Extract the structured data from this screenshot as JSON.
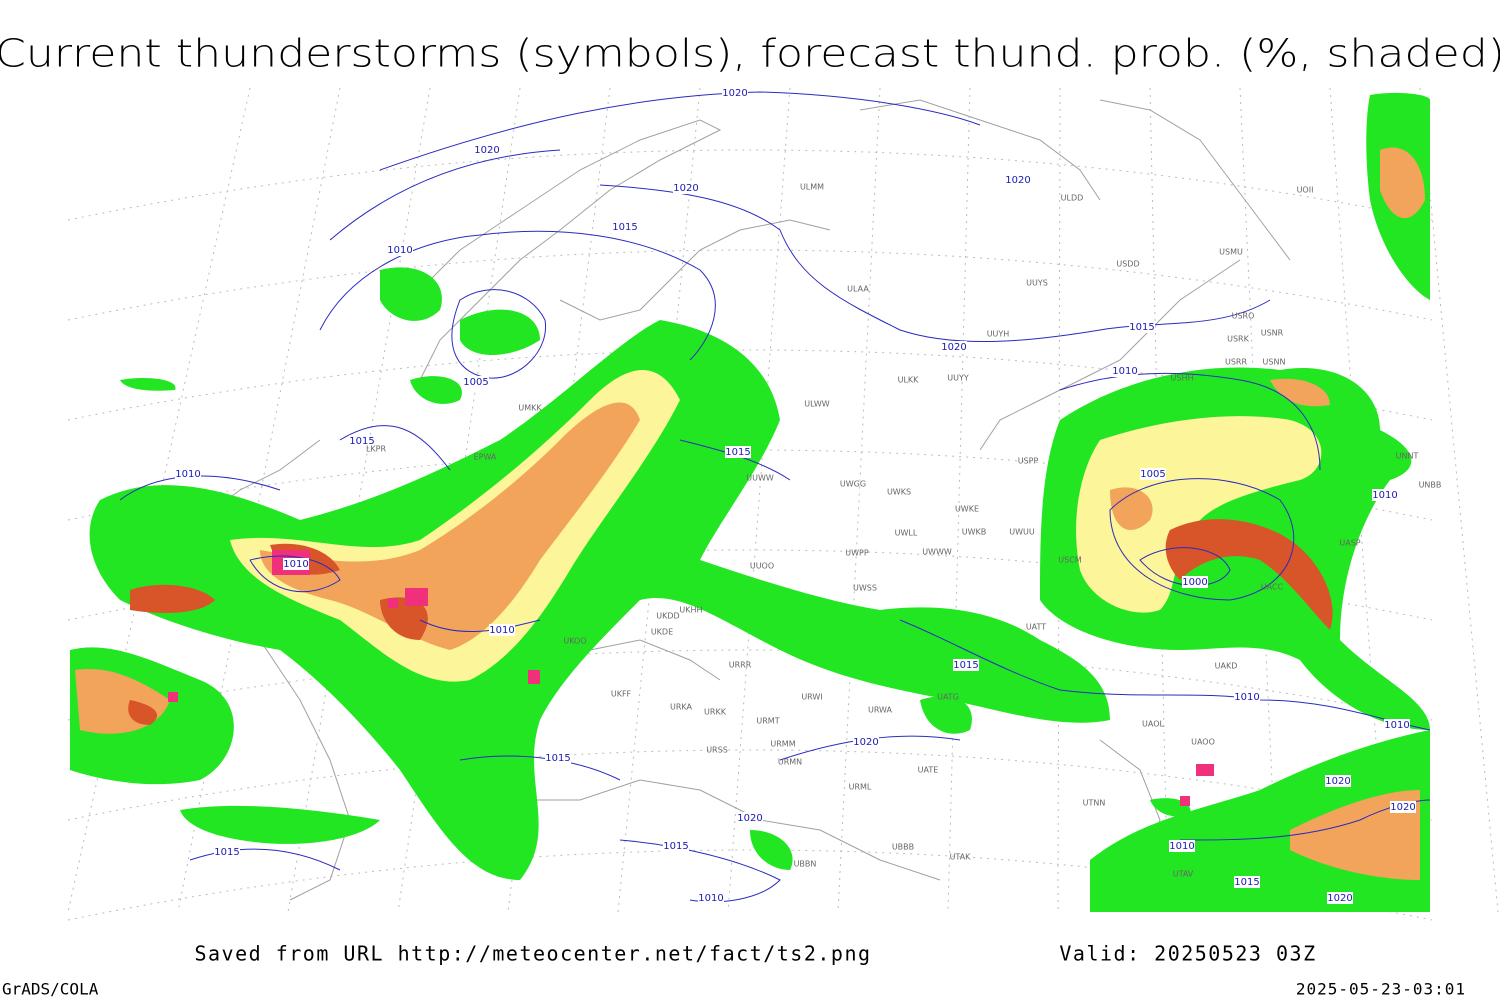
{
  "header": {
    "title": "Current thunderstorms (symbols), forecast thund. prob. (%, shaded)"
  },
  "isobar_labels": [
    "1020",
    "1020",
    "1020",
    "1015",
    "1010",
    "1005",
    "1015",
    "1010",
    "1010",
    "1010",
    "1015",
    "1020",
    "1015",
    "1020",
    "1010",
    "1005",
    "1000",
    "1010",
    "1015",
    "1010",
    "1020",
    "1015",
    "1015",
    "1020",
    "1015",
    "1010",
    "1010",
    "1015",
    "1020",
    "1020",
    "1020",
    "1010"
  ],
  "station_labels": [
    "ULMM",
    "ULDD",
    "UOII",
    "USDD",
    "USMU",
    "ULAA",
    "UUYS",
    "USRO",
    "USRK",
    "USNR",
    "UUYH",
    "USRR",
    "USNN",
    "USHH",
    "ULKK",
    "UUYY",
    "ULWW",
    "UMKK",
    "EPWA",
    "LKPR",
    "UUWW",
    "USPP",
    "UNNT",
    "UNBB",
    "UWGG",
    "UWKS",
    "UWKE",
    "UWLL",
    "UWKB",
    "UWUU",
    "UASP",
    "UWPP",
    "UWWW",
    "USCM",
    "UUOO",
    "UACC",
    "UWSS",
    "UKHH",
    "UKDD",
    "UKDE",
    "UATT",
    "UAKD",
    "UKOO",
    "URRR",
    "UKFF",
    "URWI",
    "UATG",
    "URKA",
    "URKK",
    "URMT",
    "URWA",
    "UAOL",
    "UAOO",
    "URSS",
    "URMM",
    "URMN",
    "UATE",
    "URML",
    "UTNN",
    "UBBB",
    "UTAK",
    "UBBN",
    "UTAV"
  ],
  "footer": {
    "source": "Saved from URL http://meteocenter.net/fact/ts2.png",
    "valid": "Valid: 20250523 03Z",
    "software": "GrADS/COLA",
    "timestamp": "2025-05-23-03:01"
  }
}
